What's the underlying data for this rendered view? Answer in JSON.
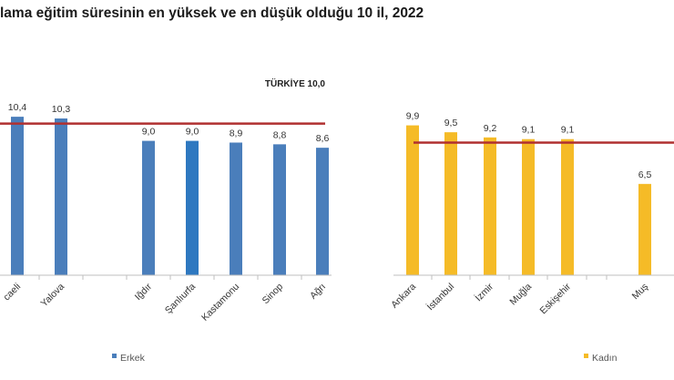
{
  "title": "lama eğitim süresinin en yüksek ve en düşük olduğu 10 il, 2022",
  "chart_data": [
    {
      "type": "bar",
      "series": [
        {
          "name": "Erkek",
          "color": "#4a7ebb",
          "values": [
            10.4,
            10.3,
            null,
            9.0,
            9.0,
            8.9,
            8.8,
            8.6
          ]
        }
      ],
      "highlight_color": "#2e78c0",
      "highlight_index": 4,
      "categories": [
        "caeli",
        "Yalova",
        "",
        "Iğdır",
        "Şanlıurfa",
        "Kastamonu",
        "Sinop",
        "Ağrı"
      ],
      "value_labels": [
        "10,4",
        "10,3",
        "",
        "9,0",
        "9,0",
        "8,9",
        "8,8",
        "8,6"
      ],
      "reference_line": {
        "label": "TÜRKİYE 10,0",
        "value": 10.0,
        "color": "#b03030"
      },
      "legend": "bottom"
    },
    {
      "type": "bar",
      "series": [
        {
          "name": "Kadın",
          "color": "#f5bb27",
          "values": [
            9.9,
            9.5,
            9.2,
            9.1,
            9.1,
            null,
            6.5
          ]
        }
      ],
      "categories": [
        "Ankara",
        "İstanbul",
        "İzmir",
        "Muğla",
        "Eskişehir",
        "",
        "Muş"
      ],
      "value_labels": [
        "9,9",
        "9,5",
        "9,2",
        "9,1",
        "9,1",
        "",
        "6,5"
      ],
      "reference_line": {
        "label": "",
        "value": 8.9,
        "color": "#b03030"
      },
      "legend": "bottom"
    }
  ]
}
